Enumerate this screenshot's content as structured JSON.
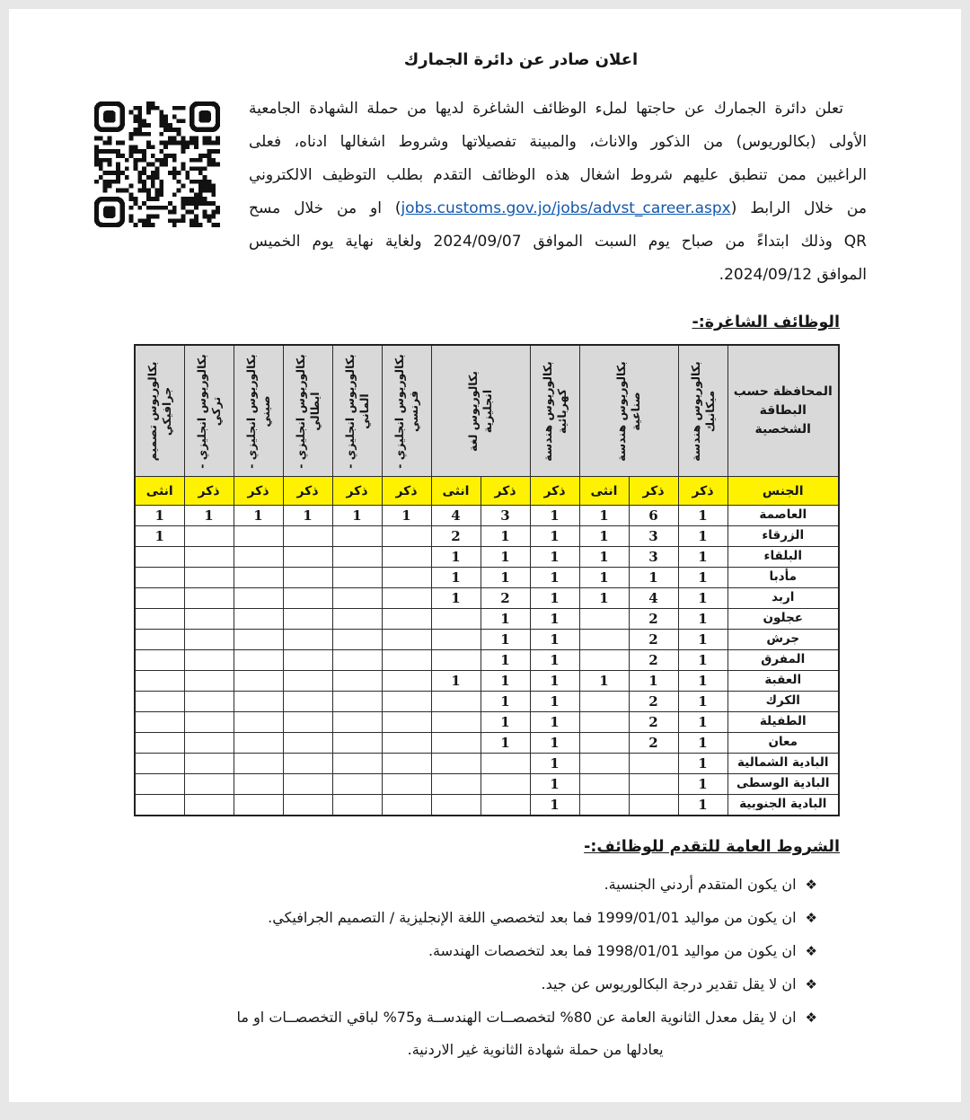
{
  "colors": {
    "link_blue": "#1258ad",
    "header_gray": "#d9d9d9",
    "gender_yellow": "#fff200"
  },
  "doc": {
    "title": "اعلان صادر عن دائرة الجمارك",
    "intro": {
      "line1": "تعلن دائرة الجمارك عن حاجتها لملء الوظائف الشاغرة لديها من حملة الشهادة الجامعية",
      "line2": "الأولى (بكالوريوس) من الذكور والاناث، والمبينة تفصيلاتها وشروط اشغالها ادناه، فعلى",
      "line3": "الراغبين ممن تنطبق عليهم شروط اشغال هذه الوظائف التقدم بطلب التوظيف الالكتروني",
      "line4_pre": "من خلال الرابط (",
      "link": "jobs.customs.gov.jo/jobs/advst_career.aspx",
      "line4_post": ") او من خلال مسح",
      "line5": "QR وذلك ابتداءً من صباح يوم السبت الموافق 2024/09/07 ولغاية نهاية يوم الخميس",
      "line6": "الموافق 2024/09/12."
    },
    "qr_label": "qr-code"
  },
  "vacancies": {
    "heading": "الوظائف الشاغرة:-",
    "table": {
      "corner_header": "المحافظة حسب البطاقة الشخصية",
      "gender_label": "الجنس",
      "columns": [
        {
          "label": "بكالوريوس هندسة ميكانيك",
          "span": 1,
          "genders": [
            "ذكر"
          ]
        },
        {
          "label": "بكالوريوس هندسة صناعية",
          "span": 2,
          "genders": [
            "ذكر",
            "انثى"
          ]
        },
        {
          "label": "بكالوريوس هندسة كهربائية",
          "span": 1,
          "genders": [
            "ذكر"
          ]
        },
        {
          "label": "بكالوريوس لغة انجليزية",
          "span": 2,
          "genders": [
            "ذكر",
            "انثى"
          ]
        },
        {
          "label": "بكالوريوس انجليزي - فرنسي",
          "span": 1,
          "genders": [
            "ذكر"
          ]
        },
        {
          "label": "بكالوريوس انجليزي - الماني",
          "span": 1,
          "genders": [
            "ذكر"
          ]
        },
        {
          "label": "بكالوريوس انجليزي - ايطالي",
          "span": 1,
          "genders": [
            "ذكر"
          ]
        },
        {
          "label": "بكالوريوس انجليزي - صيني",
          "span": 1,
          "genders": [
            "ذكر"
          ]
        },
        {
          "label": "بكالوريوس انجليزي - تركي",
          "span": 1,
          "genders": [
            "ذكر"
          ]
        },
        {
          "label": "بكالوريوس تصميم جرافيكي",
          "span": 1,
          "genders": [
            "انثى"
          ]
        }
      ],
      "rows": [
        {
          "name": "العاصمة",
          "values": [
            "1",
            "6",
            "1",
            "1",
            "3",
            "4",
            "1",
            "1",
            "1",
            "1",
            "1",
            "1"
          ]
        },
        {
          "name": "الزرقاء",
          "values": [
            "1",
            "3",
            "1",
            "1",
            "1",
            "2",
            "",
            "",
            "",
            "",
            "",
            "1"
          ]
        },
        {
          "name": "البلقاء",
          "values": [
            "1",
            "3",
            "1",
            "1",
            "1",
            "1",
            "",
            "",
            "",
            "",
            "",
            ""
          ]
        },
        {
          "name": "مأدبا",
          "values": [
            "1",
            "1",
            "1",
            "1",
            "1",
            "1",
            "",
            "",
            "",
            "",
            "",
            ""
          ]
        },
        {
          "name": "اربد",
          "values": [
            "1",
            "4",
            "1",
            "1",
            "2",
            "1",
            "",
            "",
            "",
            "",
            "",
            ""
          ]
        },
        {
          "name": "عجلون",
          "values": [
            "1",
            "2",
            "",
            "1",
            "1",
            "",
            "",
            "",
            "",
            "",
            "",
            ""
          ]
        },
        {
          "name": "جرش",
          "values": [
            "1",
            "2",
            "",
            "1",
            "1",
            "",
            "",
            "",
            "",
            "",
            "",
            ""
          ]
        },
        {
          "name": "المفرق",
          "values": [
            "1",
            "2",
            "",
            "1",
            "1",
            "",
            "",
            "",
            "",
            "",
            "",
            ""
          ]
        },
        {
          "name": "العقبة",
          "values": [
            "1",
            "1",
            "1",
            "1",
            "1",
            "1",
            "",
            "",
            "",
            "",
            "",
            ""
          ]
        },
        {
          "name": "الكرك",
          "values": [
            "1",
            "2",
            "",
            "1",
            "1",
            "",
            "",
            "",
            "",
            "",
            "",
            ""
          ]
        },
        {
          "name": "الطفيلة",
          "values": [
            "1",
            "2",
            "",
            "1",
            "1",
            "",
            "",
            "",
            "",
            "",
            "",
            ""
          ]
        },
        {
          "name": "معان",
          "values": [
            "1",
            "2",
            "",
            "1",
            "1",
            "",
            "",
            "",
            "",
            "",
            "",
            ""
          ]
        },
        {
          "name": "البادية الشمالية",
          "values": [
            "1",
            "",
            "",
            "1",
            "",
            "",
            "",
            "",
            "",
            "",
            "",
            ""
          ]
        },
        {
          "name": "البادية الوسطى",
          "values": [
            "1",
            "",
            "",
            "1",
            "",
            "",
            "",
            "",
            "",
            "",
            "",
            ""
          ]
        },
        {
          "name": "البادية الجنوبية",
          "values": [
            "1",
            "",
            "",
            "1",
            "",
            "",
            "",
            "",
            "",
            "",
            "",
            ""
          ]
        }
      ]
    }
  },
  "conditions": {
    "heading": "الشروط العامة للتقدم للوظائف:-",
    "bullet_glyph": "❖",
    "items": [
      {
        "lines": [
          "ان يكون المتقدم أردني الجنسية."
        ]
      },
      {
        "lines": [
          "ان يكون من مواليد 1999/01/01 فما بعد لتخصصي اللغة الإنجليزية / التصميم الجرافيكي."
        ]
      },
      {
        "lines": [
          "ان يكون من مواليد 1998/01/01 فما بعد لتخصصات الهندسة."
        ]
      },
      {
        "lines": [
          "ان لا يقل تقدير درجة البكالوريوس عن جيد."
        ]
      },
      {
        "lines": [
          "ان لا يقل معدل الثانوية العامة عن 80% لتخصصــات الهندســة و75% لباقي التخصصــات او ما",
          "يعادلها من حملة شهادة الثانوية غير الاردنية."
        ]
      }
    ]
  }
}
